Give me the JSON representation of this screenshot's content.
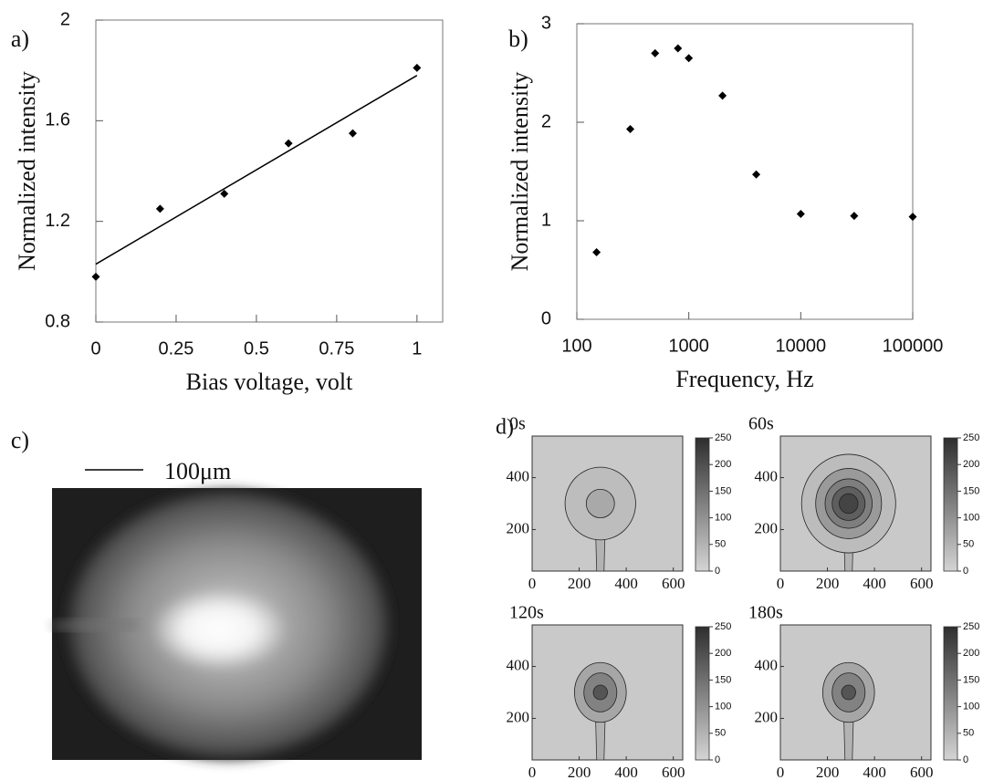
{
  "chart_data": [
    {
      "type": "scatter",
      "label": "a)",
      "xlabel": "Bias voltage, volt",
      "ylabel": "Normalized intensity",
      "xlim": [
        0,
        1.08
      ],
      "xticks": [
        0,
        0.25,
        0.5,
        0.75,
        1
      ],
      "ylim": [
        0.8,
        2
      ],
      "yticks": [
        0.8,
        1.2,
        1.6,
        2
      ],
      "series": [
        {
          "style": "marker",
          "color": "#000000",
          "x": [
            0,
            0.2,
            0.4,
            0.6,
            0.8,
            1
          ],
          "values": [
            0.98,
            1.25,
            1.31,
            1.51,
            1.55,
            1.81
          ]
        },
        {
          "style": "line",
          "color": "#000000",
          "x": [
            0,
            1
          ],
          "values": [
            1.03,
            1.78
          ]
        }
      ]
    },
    {
      "type": "scatter",
      "label": "b)",
      "xlabel": "Frequency, Hz",
      "ylabel": "Normalized intensity",
      "xlog": true,
      "xlim": [
        100,
        100000
      ],
      "xticks": [
        100,
        1000,
        10000,
        100000
      ],
      "ylim": [
        0,
        3
      ],
      "yticks": [
        0,
        1,
        2,
        3
      ],
      "series": [
        {
          "style": "marker",
          "color": "#000000",
          "x": [
            150,
            300,
            500,
            800,
            1000,
            2000,
            4000,
            10000,
            30000,
            100000
          ],
          "values": [
            0.68,
            1.93,
            2.7,
            2.75,
            2.65,
            2.27,
            1.47,
            1.07,
            1.05,
            1.04
          ]
        }
      ]
    },
    {
      "type": "image",
      "label": "c)",
      "scale_label": "100μm"
    },
    {
      "type": "contour",
      "label": "d)",
      "panels": [
        {
          "title": "0s",
          "xlim": [
            0,
            640
          ],
          "xticks": [
            0,
            200,
            400,
            600
          ],
          "ylim": [
            40,
            560
          ],
          "yticks": [
            200,
            400
          ],
          "clim": [
            0,
            250
          ],
          "cticks": [
            0,
            50,
            100,
            150,
            200,
            250
          ]
        },
        {
          "title": "60s",
          "xlim": [
            0,
            640
          ],
          "xticks": [
            0,
            200,
            400,
            600
          ],
          "ylim": [
            40,
            560
          ],
          "yticks": [
            200,
            400
          ],
          "clim": [
            0,
            250
          ],
          "cticks": [
            0,
            50,
            100,
            150,
            200,
            250
          ]
        },
        {
          "title": "120s",
          "xlim": [
            0,
            640
          ],
          "xticks": [
            0,
            200,
            400,
            600
          ],
          "ylim": [
            40,
            560
          ],
          "yticks": [
            200,
            400
          ],
          "clim": [
            0,
            250
          ],
          "cticks": [
            0,
            50,
            100,
            150,
            200,
            250
          ]
        },
        {
          "title": "180s",
          "xlim": [
            0,
            640
          ],
          "xticks": [
            0,
            200,
            400,
            600
          ],
          "ylim": [
            40,
            560
          ],
          "yticks": [
            200,
            400
          ],
          "clim": [
            0,
            250
          ],
          "cticks": [
            0,
            50,
            100,
            150,
            200,
            250
          ]
        }
      ]
    }
  ]
}
